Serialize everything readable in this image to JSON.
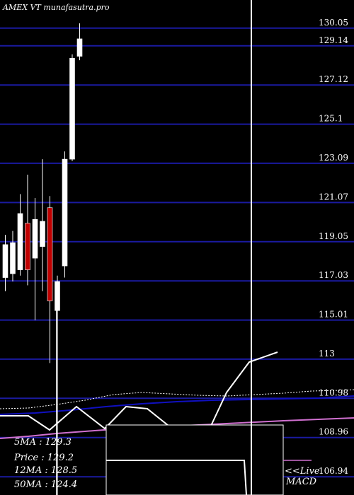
{
  "header": {
    "title": "AMEX  VT munafasutra.pro"
  },
  "stats": [
    {
      "label": "5MA",
      "value": "129.3"
    },
    {
      "label": "Price",
      "value": "129.2"
    },
    {
      "label": "12MA",
      "value": "128.5"
    },
    {
      "label": "50MA",
      "value": "124.4"
    }
  ],
  "live_label": "<<Live",
  "macd_label": "MACD",
  "colors": {
    "background": "#000000",
    "gridline": "#1a1aa0",
    "bull_candle": "#ffffff",
    "bear_candle": "#c00000",
    "ma_short": "#ffffff",
    "ma_long": "#1010c0",
    "ma_very_long": "#d070d0"
  },
  "chart_data": {
    "type": "candlestick",
    "title": "AMEX  VT munafasutra.pro",
    "y_ticks": [
      130.05,
      129.14,
      127.12,
      125.1,
      123.09,
      121.07,
      119.05,
      117.03,
      115.01,
      113,
      110.98,
      108.96,
      106.94
    ],
    "ylim": [
      106.0,
      131.5
    ],
    "candles": [
      {
        "open": 117.2,
        "close": 118.9,
        "high": 119.4,
        "low": 116.5
      },
      {
        "open": 117.4,
        "close": 119.0,
        "high": 119.6,
        "low": 117.0
      },
      {
        "open": 117.6,
        "close": 120.5,
        "high": 121.5,
        "low": 117.3
      },
      {
        "open": 120.0,
        "close": 117.6,
        "high": 122.5,
        "low": 116.8
      },
      {
        "open": 118.2,
        "close": 120.2,
        "high": 121.3,
        "low": 115.0
      },
      {
        "open": 118.8,
        "close": 120.1,
        "high": 123.3,
        "low": 116.5
      },
      {
        "open": 120.8,
        "close": 116.0,
        "high": 121.4,
        "low": 112.8
      },
      {
        "open": 115.5,
        "close": 117.0,
        "high": 117.3,
        "low": 105.5
      },
      {
        "open": 117.8,
        "close": 123.3,
        "high": 123.7,
        "low": 117.2
      },
      {
        "open": 123.3,
        "close": 128.5,
        "high": 128.7,
        "low": 123.2
      },
      {
        "open": 128.6,
        "close": 129.5,
        "high": 130.3,
        "low": 128.4
      }
    ],
    "moving_averages": {
      "5MA": 129.3,
      "12MA": 128.5,
      "50MA": 124.4
    },
    "current_price": 129.2,
    "macd_section_label": "MACD"
  }
}
